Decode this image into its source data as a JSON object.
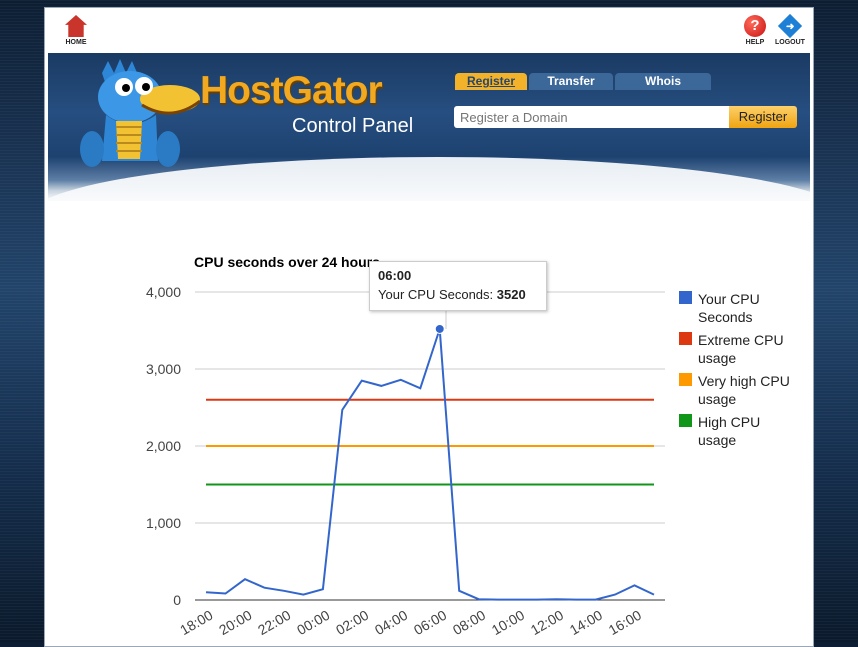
{
  "header": {
    "home_label": "HOME",
    "help_label": "HELP",
    "logout_label": "LOGOUT"
  },
  "banner": {
    "brand": "HostGator",
    "subtitle": "Control Panel",
    "tabs": [
      {
        "label": "Register",
        "active": true
      },
      {
        "label": "Transfer",
        "active": false
      },
      {
        "label": "Whois",
        "active": false
      }
    ],
    "domain_placeholder": "Register a Domain",
    "register_button": "Register"
  },
  "chart_data": {
    "type": "line",
    "title": "CPU seconds over 24 hours",
    "categories": [
      "18:00",
      "19:00",
      "20:00",
      "21:00",
      "22:00",
      "23:00",
      "00:00",
      "01:00",
      "02:00",
      "03:00",
      "04:00",
      "05:00",
      "06:00",
      "07:00",
      "08:00",
      "09:00",
      "10:00",
      "11:00",
      "12:00",
      "13:00",
      "14:00",
      "15:00",
      "16:00",
      "17:00"
    ],
    "x_tick_labels": [
      "18:00",
      "20:00",
      "22:00",
      "00:00",
      "02:00",
      "04:00",
      "06:00",
      "08:00",
      "10:00",
      "12:00",
      "14:00",
      "16:00"
    ],
    "y_tick_labels": [
      "0",
      "1,000",
      "2,000",
      "3,000",
      "4,000"
    ],
    "ylim": [
      0,
      4000
    ],
    "grid": true,
    "legend_position": "right",
    "series": [
      {
        "name": "Your CPU Seconds",
        "color": "#3366cc",
        "values": [
          100,
          85,
          270,
          160,
          120,
          70,
          140,
          2470,
          2850,
          2780,
          2860,
          2750,
          3520,
          120,
          10,
          5,
          5,
          5,
          10,
          5,
          5,
          70,
          190,
          70
        ]
      },
      {
        "name": "Extreme CPU usage",
        "color": "#dc3912",
        "values": [
          2600,
          2600,
          2600,
          2600,
          2600,
          2600,
          2600,
          2600,
          2600,
          2600,
          2600,
          2600,
          2600,
          2600,
          2600,
          2600,
          2600,
          2600,
          2600,
          2600,
          2600,
          2600,
          2600,
          2600
        ]
      },
      {
        "name": "Very high CPU usage",
        "color": "#ff9900",
        "values": [
          2000,
          2000,
          2000,
          2000,
          2000,
          2000,
          2000,
          2000,
          2000,
          2000,
          2000,
          2000,
          2000,
          2000,
          2000,
          2000,
          2000,
          2000,
          2000,
          2000,
          2000,
          2000,
          2000,
          2000
        ]
      },
      {
        "name": "High CPU usage",
        "color": "#109618",
        "values": [
          1500,
          1500,
          1500,
          1500,
          1500,
          1500,
          1500,
          1500,
          1500,
          1500,
          1500,
          1500,
          1500,
          1500,
          1500,
          1500,
          1500,
          1500,
          1500,
          1500,
          1500,
          1500,
          1500,
          1500
        ]
      }
    ],
    "tooltip": {
      "time": "06:00",
      "label": "Your CPU Seconds:",
      "value": "3520"
    }
  }
}
